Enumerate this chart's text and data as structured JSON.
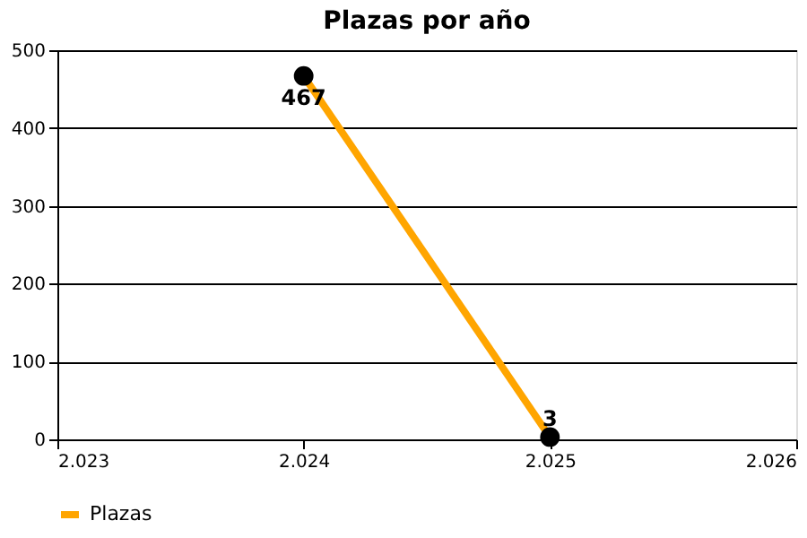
{
  "chart_data": {
    "type": "line",
    "title": "Plazas por año",
    "x": [
      2024,
      2025
    ],
    "series": [
      {
        "name": "Plazas",
        "color": "#ffa500",
        "colors": [
          "#000000",
          "#000000"
        ],
        "values": [
          467,
          3
        ]
      }
    ],
    "xlim": [
      2023,
      2026
    ],
    "xticks": [
      {
        "value": 2023,
        "label": "2.023"
      },
      {
        "value": 2024,
        "label": "2.024"
      },
      {
        "value": 2025,
        "label": "2.025"
      },
      {
        "value": 2026,
        "label": "2.026"
      }
    ],
    "ylim": [
      0,
      500
    ],
    "yticks": [
      0,
      100,
      200,
      300,
      400,
      500
    ],
    "grid": "y",
    "legend": "bottom left",
    "marker": "circle",
    "data_labels": true
  }
}
